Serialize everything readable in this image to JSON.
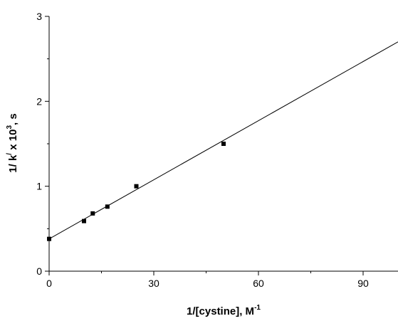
{
  "chart_data": {
    "type": "scatter",
    "xlabel": {
      "main": "1/[cystine], M",
      "sup": "-1"
    },
    "ylabel": {
      "pre": "1/ k",
      "sup1": "/",
      "mid": " x 10",
      "sup2": "3",
      "post": ", s"
    },
    "xlim": [
      0,
      100
    ],
    "ylim": [
      0,
      3
    ],
    "xticks": [
      0,
      30,
      60,
      90
    ],
    "xtick_labels": [
      "0",
      "30",
      "60",
      "90"
    ],
    "yticks": [
      0,
      1,
      2,
      3
    ],
    "ytick_labels": [
      "0",
      "1",
      "2",
      "3"
    ],
    "grid": false,
    "series": [
      {
        "x": [
          0,
          10,
          12.5,
          16.7,
          25,
          50
        ],
        "y": [
          0.38,
          0.59,
          0.68,
          0.76,
          1.0,
          1.5
        ]
      }
    ],
    "fit_line": {
      "x": [
        0,
        100
      ],
      "y": [
        0.38,
        2.7
      ]
    }
  }
}
